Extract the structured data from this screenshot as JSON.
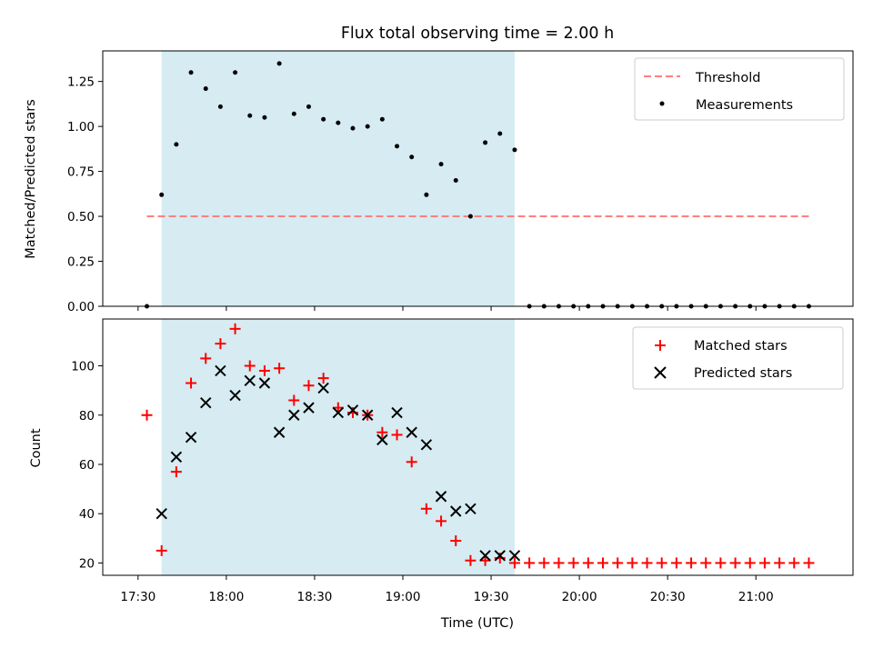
{
  "chart_data": [
    {
      "type": "scatter",
      "title": "Flux total observing time = 2.00 h",
      "xlabel": "",
      "ylabel": "Matched/Predicted stars",
      "ylim": [
        0,
        1.42
      ],
      "yticks": [
        "0.00",
        "0.25",
        "0.50",
        "0.75",
        "1.00",
        "1.25"
      ],
      "shaded_span": [
        "17:38",
        "19:38"
      ],
      "threshold": {
        "name": "Threshold",
        "y": 0.5,
        "x_range": [
          "17:33",
          "21:18"
        ],
        "color": "#ff7f7f"
      },
      "series": [
        {
          "name": "Measurements",
          "color": "#000000",
          "x": [
            "17:33",
            "17:38",
            "17:43",
            "17:48",
            "17:53",
            "17:58",
            "18:03",
            "18:08",
            "18:13",
            "18:18",
            "18:23",
            "18:28",
            "18:33",
            "18:38",
            "18:43",
            "18:48",
            "18:53",
            "18:58",
            "19:03",
            "19:08",
            "19:13",
            "19:18",
            "19:23",
            "19:28",
            "19:33",
            "19:38",
            "19:43",
            "19:48",
            "19:53",
            "19:58",
            "20:03",
            "20:08",
            "20:13",
            "20:18",
            "20:23",
            "20:28",
            "20:33",
            "20:38",
            "20:43",
            "20:48",
            "20:53",
            "20:58",
            "21:03",
            "21:08",
            "21:13",
            "21:18"
          ],
          "y": [
            0.0,
            0.62,
            0.9,
            1.3,
            1.21,
            1.11,
            1.3,
            1.06,
            1.05,
            1.35,
            1.07,
            1.11,
            1.04,
            1.02,
            0.99,
            1.0,
            1.04,
            0.89,
            0.83,
            0.62,
            0.79,
            0.7,
            0.5,
            0.91,
            0.96,
            0.87,
            0,
            0,
            0,
            0,
            0,
            0,
            0,
            0,
            0,
            0,
            0,
            0,
            0,
            0,
            0,
            0,
            0,
            0,
            0,
            0
          ]
        }
      ]
    },
    {
      "type": "scatter",
      "title": "",
      "xlabel": "Time (UTC)",
      "ylabel": "Count",
      "ylim": [
        15,
        119
      ],
      "yticks": [
        "20",
        "40",
        "60",
        "80",
        "100"
      ],
      "xticks": [
        "17:30",
        "18:00",
        "18:30",
        "19:00",
        "19:30",
        "20:00",
        "20:30",
        "21:00"
      ],
      "shaded_span": [
        "17:38",
        "19:38"
      ],
      "series": [
        {
          "name": "Matched stars",
          "marker": "+",
          "color": "#ff0000",
          "x": [
            "17:33",
            "17:38",
            "17:43",
            "17:48",
            "17:53",
            "17:58",
            "18:03",
            "18:08",
            "18:13",
            "18:18",
            "18:23",
            "18:28",
            "18:33",
            "18:38",
            "18:43",
            "18:48",
            "18:53",
            "18:58",
            "19:03",
            "19:08",
            "19:13",
            "19:18",
            "19:23",
            "19:28",
            "19:33",
            "19:38",
            "19:43",
            "19:48",
            "19:53",
            "19:58",
            "20:03",
            "20:08",
            "20:13",
            "20:18",
            "20:23",
            "20:28",
            "20:33",
            "20:38",
            "20:43",
            "20:48",
            "20:53",
            "20:58",
            "21:03",
            "21:08",
            "21:13",
            "21:18"
          ],
          "y": [
            80,
            25,
            57,
            93,
            103,
            109,
            115,
            100,
            98,
            99,
            86,
            92,
            95,
            83,
            81,
            80,
            73,
            72,
            61,
            42,
            37,
            29,
            21,
            21,
            22,
            20,
            20,
            20,
            20,
            20,
            20,
            20,
            20,
            20,
            20,
            20,
            20,
            20,
            20,
            20,
            20,
            20,
            20,
            20,
            20,
            20
          ]
        },
        {
          "name": "Predicted stars",
          "marker": "x",
          "color": "#000000",
          "x": [
            "17:38",
            "17:43",
            "17:48",
            "17:53",
            "17:58",
            "18:03",
            "18:08",
            "18:13",
            "18:18",
            "18:23",
            "18:28",
            "18:33",
            "18:38",
            "18:43",
            "18:48",
            "18:53",
            "18:58",
            "19:03",
            "19:08",
            "19:13",
            "19:18",
            "19:23",
            "19:28",
            "19:33",
            "19:38"
          ],
          "y": [
            40,
            63,
            71,
            85,
            98,
            88,
            94,
            93,
            73,
            80,
            83,
            91,
            81,
            82,
            80,
            70,
            81,
            73,
            68,
            47,
            41,
            42,
            23,
            23,
            23
          ]
        }
      ]
    }
  ]
}
